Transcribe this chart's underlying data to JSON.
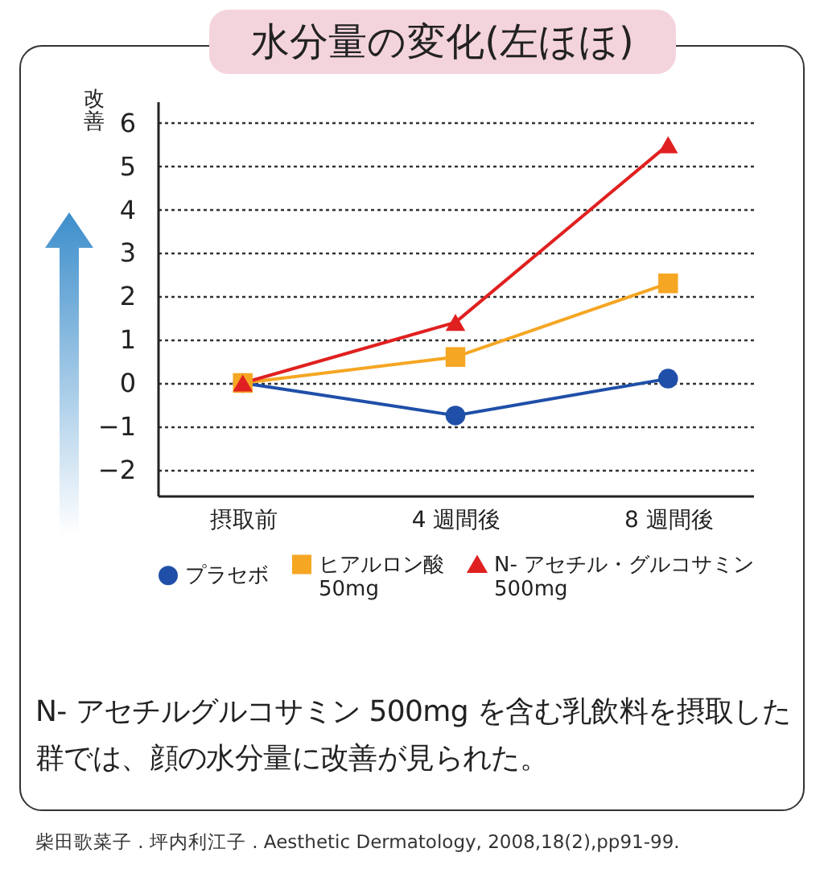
{
  "chart_data": {
    "type": "line",
    "title": "水分量の変化(左ほほ)",
    "ylabel": "改善",
    "categories": [
      "摂取前",
      "4 週間後",
      "8 週間後"
    ],
    "series": [
      {
        "name": "プラセボ",
        "color": "#1f4fa8",
        "marker": "circle",
        "values": [
          0,
          -0.75,
          0.1
        ]
      },
      {
        "name": "ヒアルロン酸\n50mg",
        "color": "#f5a623",
        "marker": "square",
        "values": [
          0,
          0.6,
          2.3
        ]
      },
      {
        "name": "N- アセチル・グルコサミン\n500mg",
        "color": "#e02020",
        "marker": "triangle",
        "values": [
          0,
          1.4,
          5.5
        ]
      }
    ],
    "ylim": [
      -2.6,
      6.5
    ],
    "yticks": [
      -2,
      -1,
      0,
      1,
      2,
      3,
      4,
      5,
      6
    ],
    "grid": "y",
    "legend": "bottom",
    "annotations": [
      "N- アセチルグルコサミン 500mg を含む乳飲料を摂取した群では、顔の水分量に改善が見られた。",
      "柴田歌菜子 . 坪内利江子 . Aesthetic Dermatology, 2008,18(2),pp91-99."
    ]
  }
}
